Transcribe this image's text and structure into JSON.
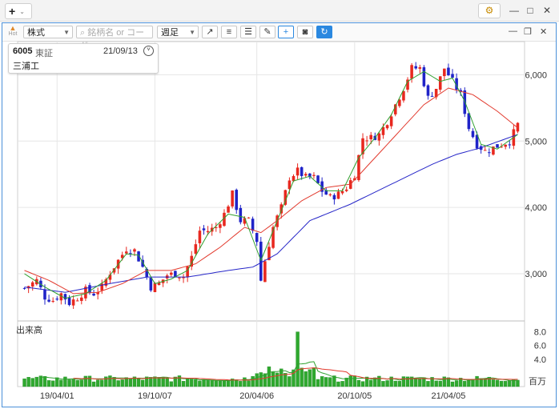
{
  "window": {
    "add_label": "+",
    "add_caret": "⌄",
    "gear_icon": "⚙",
    "min_icon": "—",
    "max_icon": "□",
    "close_icon": "✕"
  },
  "toolbar": {
    "hot_label": "Hot",
    "market_select": "株式",
    "search_placeholder": "銘柄名 or コード",
    "period_select": "週足",
    "icons": [
      "trend-line-icon",
      "indicator-icon",
      "list-icon",
      "pencil-icon",
      "crosshair-icon",
      "camera-icon",
      "refresh-icon"
    ],
    "panel_min": "—",
    "panel_max": "❐",
    "panel_close": "✕"
  },
  "infobox": {
    "code": "6005",
    "exchange": "東証",
    "date": "21/09/13",
    "name": "三浦工"
  },
  "colors": {
    "up": "#e8281f",
    "down": "#1f23c8",
    "ma_short": "#2ea02e",
    "ma_mid": "#e23a2e",
    "ma_long": "#2626c8",
    "volume": "#2fa82f",
    "grid": "#e6e6e6"
  },
  "chart_data": {
    "type": "candlestick",
    "interval": "weekly",
    "price_axis": {
      "ticks": [
        "3,000",
        "4,000",
        "5,000",
        "6,000"
      ],
      "ylim": [
        2300,
        6500
      ]
    },
    "volume_axis": {
      "title": "出来高",
      "ticks": [
        "8.0",
        "6.0",
        "4.0"
      ],
      "unit": "百万",
      "ylim": [
        0,
        9
      ]
    },
    "x_ticks": [
      "19/04/01",
      "19/10/07",
      "20/04/06",
      "20/10/05",
      "21/04/05"
    ],
    "close_path": [
      [
        0,
        2780
      ],
      [
        3,
        2900
      ],
      [
        5,
        2650
      ],
      [
        7,
        2600
      ],
      [
        9,
        2700
      ],
      [
        11,
        2560
      ],
      [
        13,
        2640
      ],
      [
        15,
        2750
      ],
      [
        17,
        2700
      ],
      [
        19,
        2800
      ],
      [
        21,
        3020
      ],
      [
        23,
        3200
      ],
      [
        25,
        3380
      ],
      [
        27,
        3350
      ],
      [
        29,
        3100
      ],
      [
        31,
        2800
      ],
      [
        33,
        2850
      ],
      [
        35,
        2980
      ],
      [
        37,
        3000
      ],
      [
        39,
        2960
      ],
      [
        41,
        3250
      ],
      [
        43,
        3650
      ],
      [
        45,
        3650
      ],
      [
        47,
        3700
      ],
      [
        49,
        3900
      ],
      [
        51,
        4200
      ],
      [
        53,
        3800
      ],
      [
        55,
        3800
      ],
      [
        57,
        3500
      ],
      [
        58,
        2900
      ],
      [
        59,
        3200
      ],
      [
        61,
        3700
      ],
      [
        63,
        4000
      ],
      [
        65,
        4450
      ],
      [
        67,
        4550
      ],
      [
        69,
        4450
      ],
      [
        71,
        4450
      ],
      [
        73,
        4250
      ],
      [
        75,
        4150
      ],
      [
        77,
        4200
      ],
      [
        79,
        4300
      ],
      [
        81,
        4500
      ],
      [
        83,
        5050
      ],
      [
        85,
        5050
      ],
      [
        87,
        5100
      ],
      [
        89,
        5300
      ],
      [
        91,
        5550
      ],
      [
        93,
        5800
      ],
      [
        95,
        6100
      ],
      [
        97,
        6100
      ],
      [
        99,
        5650
      ],
      [
        101,
        5800
      ],
      [
        103,
        6100
      ],
      [
        105,
        5900
      ],
      [
        107,
        5700
      ],
      [
        109,
        5200
      ],
      [
        111,
        4950
      ],
      [
        113,
        4850
      ],
      [
        115,
        4900
      ],
      [
        117,
        4950
      ],
      [
        119,
        5000
      ],
      [
        121,
        5250
      ]
    ],
    "ma_short": [
      [
        0,
        3000
      ],
      [
        5,
        2800
      ],
      [
        10,
        2630
      ],
      [
        15,
        2700
      ],
      [
        20,
        2900
      ],
      [
        25,
        3300
      ],
      [
        28,
        3280
      ],
      [
        32,
        2850
      ],
      [
        36,
        2920
      ],
      [
        40,
        3050
      ],
      [
        45,
        3600
      ],
      [
        50,
        3900
      ],
      [
        54,
        3850
      ],
      [
        58,
        3200
      ],
      [
        62,
        3800
      ],
      [
        66,
        4400
      ],
      [
        70,
        4470
      ],
      [
        74,
        4250
      ],
      [
        78,
        4250
      ],
      [
        82,
        4750
      ],
      [
        86,
        5050
      ],
      [
        90,
        5400
      ],
      [
        94,
        5900
      ],
      [
        98,
        6050
      ],
      [
        102,
        5900
      ],
      [
        105,
        5950
      ],
      [
        108,
        5600
      ],
      [
        112,
        4950
      ],
      [
        116,
        4880
      ],
      [
        121,
        5100
      ]
    ],
    "ma_mid": [
      [
        0,
        3050
      ],
      [
        6,
        2900
      ],
      [
        12,
        2700
      ],
      [
        18,
        2720
      ],
      [
        24,
        2850
      ],
      [
        30,
        3050
      ],
      [
        36,
        3050
      ],
      [
        42,
        3150
      ],
      [
        48,
        3400
      ],
      [
        54,
        3700
      ],
      [
        58,
        3620
      ],
      [
        62,
        3800
      ],
      [
        68,
        4100
      ],
      [
        74,
        4300
      ],
      [
        80,
        4350
      ],
      [
        86,
        4750
      ],
      [
        92,
        5150
      ],
      [
        98,
        5550
      ],
      [
        104,
        5800
      ],
      [
        110,
        5700
      ],
      [
        116,
        5450
      ],
      [
        121,
        5200
      ]
    ],
    "ma_long": [
      [
        0,
        2800
      ],
      [
        10,
        2720
      ],
      [
        20,
        2840
      ],
      [
        30,
        2950
      ],
      [
        40,
        2950
      ],
      [
        50,
        3050
      ],
      [
        56,
        3100
      ],
      [
        62,
        3300
      ],
      [
        70,
        3800
      ],
      [
        80,
        4050
      ],
      [
        90,
        4350
      ],
      [
        100,
        4650
      ],
      [
        106,
        4800
      ],
      [
        112,
        4900
      ],
      [
        121,
        5100
      ]
    ],
    "volume_spike_index": 67
  }
}
